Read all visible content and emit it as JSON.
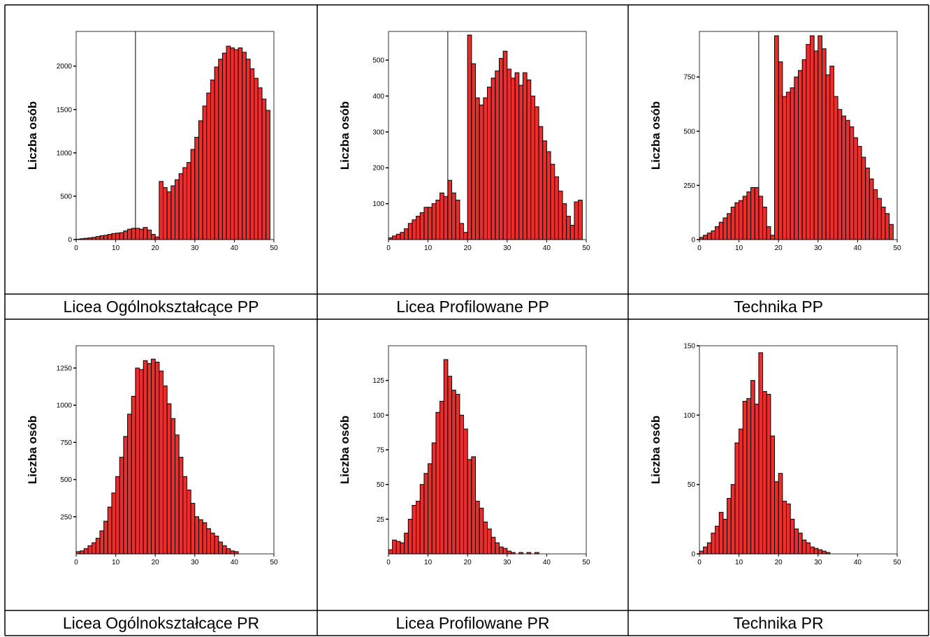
{
  "chart_data": [
    {
      "type": "bar",
      "caption": "Licea Ogólnokształcące PP",
      "ylabel": "Liczba osób",
      "xlim": [
        0,
        50
      ],
      "ylim": [
        0,
        2400
      ],
      "xticks": [
        0,
        10,
        20,
        30,
        40,
        50
      ],
      "yticks": [
        0,
        500,
        1000,
        1500,
        2000
      ],
      "threshold_x": 15,
      "values": [
        5,
        10,
        15,
        20,
        25,
        35,
        45,
        50,
        60,
        70,
        75,
        80,
        100,
        120,
        130,
        130,
        120,
        140,
        110,
        60,
        30,
        670,
        600,
        550,
        620,
        690,
        760,
        830,
        890,
        1040,
        1180,
        1370,
        1540,
        1690,
        1840,
        1990,
        2080,
        2150,
        2230,
        2210,
        2190,
        2210,
        2160,
        2080,
        1970,
        1860,
        1750,
        1620,
        1490
      ]
    },
    {
      "type": "bar",
      "caption": "Licea Profilowane PP",
      "ylabel": "Liczba osób",
      "xlim": [
        0,
        50
      ],
      "ylim": [
        0,
        580
      ],
      "xticks": [
        0,
        10,
        20,
        30,
        40,
        50
      ],
      "yticks": [
        100,
        200,
        300,
        400,
        500
      ],
      "threshold_x": 15,
      "values": [
        5,
        10,
        15,
        20,
        30,
        45,
        55,
        65,
        75,
        90,
        90,
        100,
        110,
        130,
        120,
        165,
        130,
        110,
        45,
        20,
        570,
        490,
        395,
        375,
        395,
        425,
        450,
        470,
        505,
        525,
        475,
        450,
        465,
        430,
        465,
        445,
        400,
        370,
        315,
        275,
        245,
        210,
        175,
        135,
        100,
        65,
        40,
        105,
        110
      ]
    },
    {
      "type": "bar",
      "caption": "Technika PP",
      "ylabel": "Liczba osób",
      "xlim": [
        0,
        50
      ],
      "ylim": [
        0,
        960
      ],
      "xticks": [
        0,
        10,
        20,
        30,
        40,
        50
      ],
      "yticks": [
        0,
        250,
        500,
        750
      ],
      "threshold_x": 15,
      "values": [
        10,
        20,
        30,
        40,
        60,
        80,
        100,
        120,
        150,
        170,
        180,
        200,
        220,
        240,
        240,
        200,
        150,
        60,
        20,
        940,
        820,
        660,
        680,
        700,
        750,
        780,
        830,
        900,
        940,
        870,
        940,
        880,
        760,
        800,
        660,
        600,
        570,
        550,
        520,
        470,
        430,
        380,
        330,
        280,
        230,
        190,
        150,
        120,
        70
      ]
    },
    {
      "type": "bar",
      "caption": "Licea Ogólnokształcące PR",
      "ylabel": "Liczba osób",
      "xlim": [
        0,
        50
      ],
      "ylim": [
        0,
        1400
      ],
      "xticks": [
        0,
        10,
        20,
        30,
        40,
        50
      ],
      "yticks": [
        250,
        500,
        750,
        1000,
        1250
      ],
      "values": [
        15,
        20,
        35,
        55,
        75,
        105,
        155,
        220,
        315,
        410,
        520,
        650,
        790,
        940,
        1060,
        1250,
        1240,
        1300,
        1280,
        1310,
        1290,
        1230,
        1130,
        1010,
        910,
        800,
        650,
        520,
        430,
        340,
        250,
        230,
        210,
        170,
        140,
        120,
        80,
        55,
        35,
        20,
        15
      ]
    },
    {
      "type": "bar",
      "caption": "Licea Profilowane PR",
      "ylabel": "Liczba osób",
      "xlim": [
        0,
        50
      ],
      "ylim": [
        0,
        150
      ],
      "xticks": [
        0,
        10,
        20,
        30,
        40,
        50
      ],
      "yticks": [
        25,
        50,
        75,
        100,
        125
      ],
      "values": [
        3,
        10,
        9,
        8,
        15,
        25,
        35,
        38,
        50,
        58,
        65,
        80,
        102,
        110,
        140,
        128,
        118,
        115,
        100,
        90,
        68,
        70,
        38,
        33,
        23,
        18,
        12,
        8,
        5,
        4,
        2,
        1,
        0,
        1,
        0,
        1,
        0,
        1
      ]
    },
    {
      "type": "bar",
      "caption": "Technika PR",
      "ylabel": "Liczba osób",
      "xlim": [
        0,
        50
      ],
      "ylim": [
        0,
        150
      ],
      "xticks": [
        0,
        10,
        20,
        30,
        40,
        50
      ],
      "yticks": [
        0,
        50,
        100,
        150
      ],
      "values": [
        2,
        5,
        8,
        15,
        20,
        30,
        25,
        40,
        50,
        80,
        90,
        110,
        112,
        125,
        108,
        145,
        117,
        115,
        85,
        52,
        58,
        38,
        36,
        25,
        18,
        15,
        10,
        8,
        5,
        4,
        3,
        2,
        1
      ]
    }
  ]
}
